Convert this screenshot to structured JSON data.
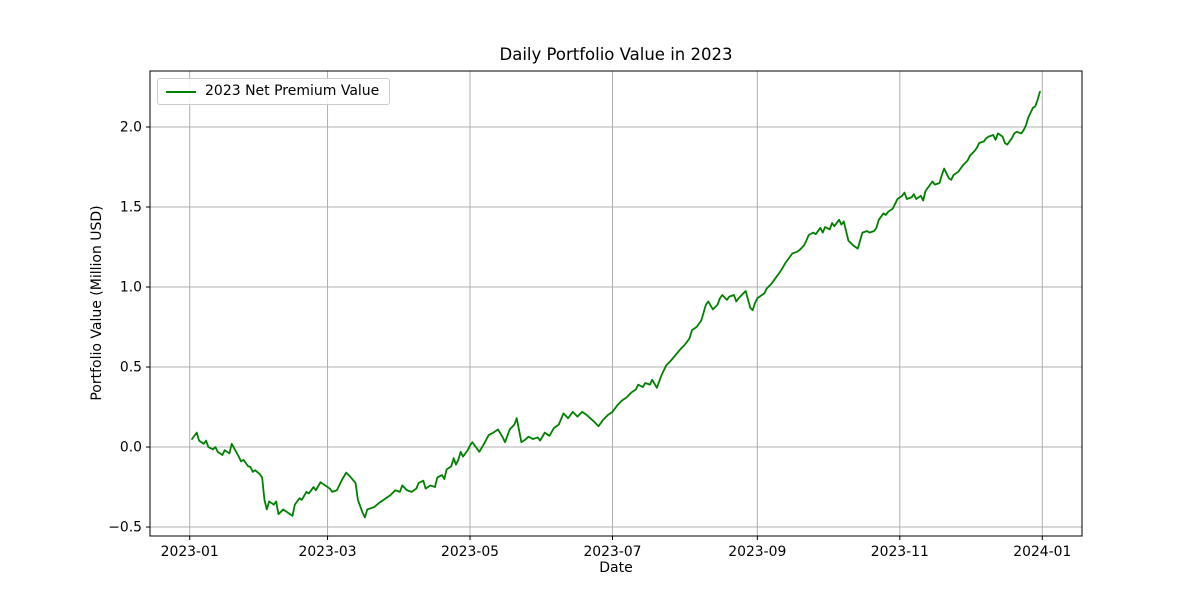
{
  "figure": {
    "background": "#ffffff"
  },
  "chart_data": {
    "type": "line",
    "title": "Daily Portfolio Value in 2023",
    "xlabel": "Date",
    "ylabel": "Portfolio Value (Million USD)",
    "grid": true,
    "legend_position": "upper left",
    "colors": {
      "line": "#008000",
      "grid": "#b0b0b0",
      "frame": "#000000",
      "text": "#000000",
      "legend_border": "#cccccc"
    },
    "xlim": [
      "2022-12-15",
      "2024-01-18"
    ],
    "ylim": [
      -0.556,
      2.35
    ],
    "x_ticks": [
      {
        "date": "2023-01-01",
        "label": "2023-01"
      },
      {
        "date": "2023-03-01",
        "label": "2023-03"
      },
      {
        "date": "2023-05-01",
        "label": "2023-05"
      },
      {
        "date": "2023-07-01",
        "label": "2023-07"
      },
      {
        "date": "2023-09-01",
        "label": "2023-09"
      },
      {
        "date": "2023-11-01",
        "label": "2023-11"
      },
      {
        "date": "2024-01-01",
        "label": "2024-01"
      }
    ],
    "y_ticks": [
      {
        "value": -0.5,
        "label": "−0.5"
      },
      {
        "value": 0.0,
        "label": "0.0"
      },
      {
        "value": 0.5,
        "label": "0.5"
      },
      {
        "value": 1.0,
        "label": "1.0"
      },
      {
        "value": 1.5,
        "label": "1.5"
      },
      {
        "value": 2.0,
        "label": "2.0"
      }
    ],
    "legend": [
      {
        "label": "2023 Net Premium Value",
        "color": "#008000"
      }
    ],
    "series": [
      {
        "name": "2023 Net Premium Value",
        "color": "#008000",
        "points": [
          [
            "2023-01-02",
            0.05
          ],
          [
            "2023-01-04",
            0.09
          ],
          [
            "2023-01-05",
            0.04
          ],
          [
            "2023-01-07",
            0.02
          ],
          [
            "2023-01-08",
            0.04
          ],
          [
            "2023-01-09",
            0.0
          ],
          [
            "2023-01-11",
            -0.015
          ],
          [
            "2023-01-12",
            0.0
          ],
          [
            "2023-01-13",
            -0.03
          ],
          [
            "2023-01-15",
            -0.05
          ],
          [
            "2023-01-16",
            -0.02
          ],
          [
            "2023-01-18",
            -0.04
          ],
          [
            "2023-01-19",
            0.02
          ],
          [
            "2023-01-22",
            -0.06
          ],
          [
            "2023-01-23",
            -0.09
          ],
          [
            "2023-01-24",
            -0.08
          ],
          [
            "2023-01-26",
            -0.12
          ],
          [
            "2023-01-27",
            -0.125
          ],
          [
            "2023-01-28",
            -0.155
          ],
          [
            "2023-01-29",
            -0.145
          ],
          [
            "2023-01-31",
            -0.17
          ],
          [
            "2023-02-01",
            -0.19
          ],
          [
            "2023-02-02",
            -0.33
          ],
          [
            "2023-02-03",
            -0.39
          ],
          [
            "2023-02-04",
            -0.34
          ],
          [
            "2023-02-06",
            -0.36
          ],
          [
            "2023-02-07",
            -0.34
          ],
          [
            "2023-02-08",
            -0.42
          ],
          [
            "2023-02-10",
            -0.39
          ],
          [
            "2023-02-11",
            -0.4
          ],
          [
            "2023-02-12",
            -0.41
          ],
          [
            "2023-02-14",
            -0.43
          ],
          [
            "2023-02-15",
            -0.36
          ],
          [
            "2023-02-17",
            -0.32
          ],
          [
            "2023-02-18",
            -0.33
          ],
          [
            "2023-02-20",
            -0.28
          ],
          [
            "2023-02-21",
            -0.29
          ],
          [
            "2023-02-23",
            -0.25
          ],
          [
            "2023-02-24",
            -0.27
          ],
          [
            "2023-02-26",
            -0.22
          ],
          [
            "2023-02-28",
            -0.24
          ],
          [
            "2023-03-02",
            -0.26
          ],
          [
            "2023-03-03",
            -0.28
          ],
          [
            "2023-03-05",
            -0.27
          ],
          [
            "2023-03-07",
            -0.21
          ],
          [
            "2023-03-09",
            -0.16
          ],
          [
            "2023-03-11",
            -0.19
          ],
          [
            "2023-03-13",
            -0.225
          ],
          [
            "2023-03-14",
            -0.33
          ],
          [
            "2023-03-16",
            -0.41
          ],
          [
            "2023-03-17",
            -0.44
          ],
          [
            "2023-03-18",
            -0.39
          ],
          [
            "2023-03-20",
            -0.38
          ],
          [
            "2023-03-21",
            -0.375
          ],
          [
            "2023-03-23",
            -0.35
          ],
          [
            "2023-03-25",
            -0.33
          ],
          [
            "2023-03-26",
            -0.32
          ],
          [
            "2023-03-28",
            -0.3
          ],
          [
            "2023-03-30",
            -0.27
          ],
          [
            "2023-04-01",
            -0.28
          ],
          [
            "2023-04-02",
            -0.24
          ],
          [
            "2023-04-04",
            -0.27
          ],
          [
            "2023-04-06",
            -0.28
          ],
          [
            "2023-04-08",
            -0.26
          ],
          [
            "2023-04-09",
            -0.225
          ],
          [
            "2023-04-11",
            -0.21
          ],
          [
            "2023-04-12",
            -0.26
          ],
          [
            "2023-04-14",
            -0.24
          ],
          [
            "2023-04-16",
            -0.25
          ],
          [
            "2023-04-17",
            -0.19
          ],
          [
            "2023-04-19",
            -0.175
          ],
          [
            "2023-04-20",
            -0.2
          ],
          [
            "2023-04-21",
            -0.14
          ],
          [
            "2023-04-23",
            -0.12
          ],
          [
            "2023-04-24",
            -0.07
          ],
          [
            "2023-04-25",
            -0.11
          ],
          [
            "2023-04-26",
            -0.08
          ],
          [
            "2023-04-27",
            -0.03
          ],
          [
            "2023-04-28",
            -0.06
          ],
          [
            "2023-04-30",
            -0.02
          ],
          [
            "2023-05-01",
            0.01
          ],
          [
            "2023-05-02",
            0.03
          ],
          [
            "2023-05-04",
            -0.01
          ],
          [
            "2023-05-05",
            -0.03
          ],
          [
            "2023-05-07",
            0.02
          ],
          [
            "2023-05-09",
            0.075
          ],
          [
            "2023-05-11",
            0.09
          ],
          [
            "2023-05-13",
            0.11
          ],
          [
            "2023-05-15",
            0.06
          ],
          [
            "2023-05-16",
            0.03
          ],
          [
            "2023-05-18",
            0.11
          ],
          [
            "2023-05-20",
            0.14
          ],
          [
            "2023-05-21",
            0.18
          ],
          [
            "2023-05-23",
            0.03
          ],
          [
            "2023-05-25",
            0.05
          ],
          [
            "2023-05-26",
            0.065
          ],
          [
            "2023-05-28",
            0.05
          ],
          [
            "2023-05-30",
            0.06
          ],
          [
            "2023-05-31",
            0.04
          ],
          [
            "2023-06-02",
            0.09
          ],
          [
            "2023-06-04",
            0.07
          ],
          [
            "2023-06-06",
            0.12
          ],
          [
            "2023-06-08",
            0.14
          ],
          [
            "2023-06-10",
            0.21
          ],
          [
            "2023-06-12",
            0.18
          ],
          [
            "2023-06-14",
            0.22
          ],
          [
            "2023-06-16",
            0.19
          ],
          [
            "2023-06-18",
            0.22
          ],
          [
            "2023-06-20",
            0.2
          ],
          [
            "2023-06-23",
            0.16
          ],
          [
            "2023-06-25",
            0.13
          ],
          [
            "2023-06-27",
            0.17
          ],
          [
            "2023-06-29",
            0.2
          ],
          [
            "2023-07-01",
            0.22
          ],
          [
            "2023-07-03",
            0.26
          ],
          [
            "2023-07-05",
            0.29
          ],
          [
            "2023-07-07",
            0.31
          ],
          [
            "2023-07-09",
            0.34
          ],
          [
            "2023-07-11",
            0.36
          ],
          [
            "2023-07-12",
            0.39
          ],
          [
            "2023-07-14",
            0.375
          ],
          [
            "2023-07-15",
            0.4
          ],
          [
            "2023-07-17",
            0.39
          ],
          [
            "2023-07-18",
            0.42
          ],
          [
            "2023-07-20",
            0.37
          ],
          [
            "2023-07-22",
            0.45
          ],
          [
            "2023-07-24",
            0.51
          ],
          [
            "2023-07-26",
            0.54
          ],
          [
            "2023-07-28",
            0.575
          ],
          [
            "2023-07-30",
            0.61
          ],
          [
            "2023-08-01",
            0.64
          ],
          [
            "2023-08-03",
            0.68
          ],
          [
            "2023-08-04",
            0.73
          ],
          [
            "2023-08-06",
            0.75
          ],
          [
            "2023-08-08",
            0.79
          ],
          [
            "2023-08-09",
            0.84
          ],
          [
            "2023-08-10",
            0.89
          ],
          [
            "2023-08-11",
            0.91
          ],
          [
            "2023-08-13",
            0.86
          ],
          [
            "2023-08-15",
            0.89
          ],
          [
            "2023-08-16",
            0.93
          ],
          [
            "2023-08-17",
            0.95
          ],
          [
            "2023-08-19",
            0.92
          ],
          [
            "2023-08-20",
            0.94
          ],
          [
            "2023-08-22",
            0.95
          ],
          [
            "2023-08-23",
            0.91
          ],
          [
            "2023-08-24",
            0.93
          ],
          [
            "2023-08-26",
            0.96
          ],
          [
            "2023-08-27",
            0.975
          ],
          [
            "2023-08-29",
            0.87
          ],
          [
            "2023-08-30",
            0.855
          ],
          [
            "2023-08-31",
            0.9
          ],
          [
            "2023-09-01",
            0.93
          ],
          [
            "2023-09-02",
            0.94
          ],
          [
            "2023-09-04",
            0.96
          ],
          [
            "2023-09-05",
            0.99
          ],
          [
            "2023-09-07",
            1.02
          ],
          [
            "2023-09-09",
            1.06
          ],
          [
            "2023-09-11",
            1.1
          ],
          [
            "2023-09-13",
            1.15
          ],
          [
            "2023-09-15",
            1.19
          ],
          [
            "2023-09-16",
            1.21
          ],
          [
            "2023-09-18",
            1.22
          ],
          [
            "2023-09-19",
            1.23
          ],
          [
            "2023-09-21",
            1.26
          ],
          [
            "2023-09-22",
            1.29
          ],
          [
            "2023-09-23",
            1.325
          ],
          [
            "2023-09-25",
            1.34
          ],
          [
            "2023-09-26",
            1.33
          ],
          [
            "2023-09-28",
            1.37
          ],
          [
            "2023-09-29",
            1.34
          ],
          [
            "2023-09-30",
            1.375
          ],
          [
            "2023-10-02",
            1.36
          ],
          [
            "2023-10-03",
            1.4
          ],
          [
            "2023-10-04",
            1.38
          ],
          [
            "2023-10-06",
            1.42
          ],
          [
            "2023-10-07",
            1.39
          ],
          [
            "2023-10-08",
            1.41
          ],
          [
            "2023-10-10",
            1.29
          ],
          [
            "2023-10-11",
            1.275
          ],
          [
            "2023-10-12",
            1.26
          ],
          [
            "2023-10-14",
            1.24
          ],
          [
            "2023-10-15",
            1.29
          ],
          [
            "2023-10-16",
            1.34
          ],
          [
            "2023-10-18",
            1.35
          ],
          [
            "2023-10-19",
            1.34
          ],
          [
            "2023-10-21",
            1.35
          ],
          [
            "2023-10-22",
            1.37
          ],
          [
            "2023-10-23",
            1.42
          ],
          [
            "2023-10-25",
            1.46
          ],
          [
            "2023-10-26",
            1.45
          ],
          [
            "2023-10-27",
            1.47
          ],
          [
            "2023-10-29",
            1.49
          ],
          [
            "2023-10-30",
            1.52
          ],
          [
            "2023-10-31",
            1.55
          ],
          [
            "2023-11-02",
            1.57
          ],
          [
            "2023-11-03",
            1.59
          ],
          [
            "2023-11-04",
            1.55
          ],
          [
            "2023-11-06",
            1.56
          ],
          [
            "2023-11-07",
            1.58
          ],
          [
            "2023-11-08",
            1.55
          ],
          [
            "2023-11-10",
            1.57
          ],
          [
            "2023-11-11",
            1.54
          ],
          [
            "2023-11-12",
            1.6
          ],
          [
            "2023-11-14",
            1.64
          ],
          [
            "2023-11-15",
            1.66
          ],
          [
            "2023-11-16",
            1.64
          ],
          [
            "2023-11-18",
            1.65
          ],
          [
            "2023-11-19",
            1.7
          ],
          [
            "2023-11-20",
            1.74
          ],
          [
            "2023-11-22",
            1.68
          ],
          [
            "2023-11-23",
            1.67
          ],
          [
            "2023-11-24",
            1.7
          ],
          [
            "2023-11-26",
            1.72
          ],
          [
            "2023-11-27",
            1.74
          ],
          [
            "2023-11-28",
            1.76
          ],
          [
            "2023-11-30",
            1.79
          ],
          [
            "2023-12-01",
            1.82
          ],
          [
            "2023-12-03",
            1.85
          ],
          [
            "2023-12-04",
            1.87
          ],
          [
            "2023-12-05",
            1.9
          ],
          [
            "2023-12-07",
            1.91
          ],
          [
            "2023-12-08",
            1.93
          ],
          [
            "2023-12-09",
            1.94
          ],
          [
            "2023-12-11",
            1.95
          ],
          [
            "2023-12-12",
            1.92
          ],
          [
            "2023-12-13",
            1.96
          ],
          [
            "2023-12-15",
            1.94
          ],
          [
            "2023-12-16",
            1.9
          ],
          [
            "2023-12-17",
            1.89
          ],
          [
            "2023-12-19",
            1.93
          ],
          [
            "2023-12-20",
            1.96
          ],
          [
            "2023-12-21",
            1.97
          ],
          [
            "2023-12-23",
            1.96
          ],
          [
            "2023-12-24",
            1.98
          ],
          [
            "2023-12-25",
            2.01
          ],
          [
            "2023-12-26",
            2.06
          ],
          [
            "2023-12-27",
            2.09
          ],
          [
            "2023-12-28",
            2.12
          ],
          [
            "2023-12-29",
            2.13
          ],
          [
            "2023-12-30",
            2.17
          ],
          [
            "2023-12-31",
            2.22
          ]
        ]
      }
    ]
  }
}
